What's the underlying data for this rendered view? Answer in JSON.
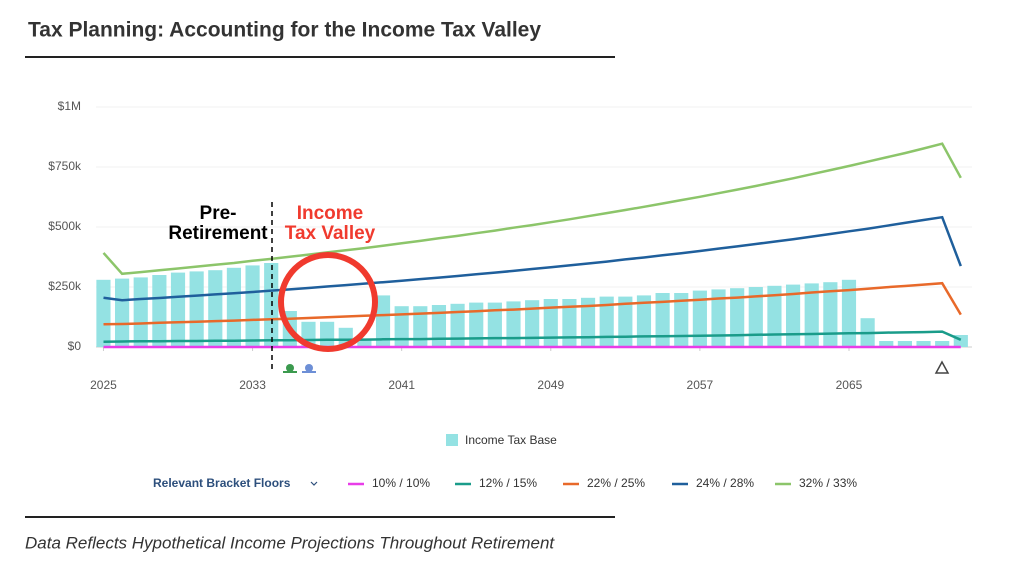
{
  "header": {
    "title": "Tax Planning: Accounting for the Income Tax Valley"
  },
  "chart_data": {
    "type": "bar",
    "x": [
      2025,
      2026,
      2027,
      2028,
      2029,
      2030,
      2031,
      2032,
      2033,
      2034,
      2035,
      2036,
      2037,
      2038,
      2039,
      2040,
      2041,
      2042,
      2043,
      2044,
      2045,
      2046,
      2047,
      2048,
      2049,
      2050,
      2051,
      2052,
      2053,
      2054,
      2055,
      2056,
      2057,
      2058,
      2059,
      2060,
      2061,
      2062,
      2063,
      2064,
      2065,
      2066,
      2067,
      2068,
      2069,
      2070,
      2071
    ],
    "xlim": [
      2024.6,
      2071.6
    ],
    "xticks": [
      2025,
      2033,
      2041,
      2049,
      2057,
      2065
    ],
    "ylim": [
      0,
      1000000
    ],
    "yticks": [
      {
        "value": 0,
        "label": "$0"
      },
      {
        "value": 250000,
        "label": "$250k"
      },
      {
        "value": 500000,
        "label": "$500k"
      },
      {
        "value": 750000,
        "label": "$750k"
      },
      {
        "value": 1000000,
        "label": "$1M"
      }
    ],
    "annotations": [
      {
        "text": [
          "Pre-",
          "Retirement"
        ],
        "color": "#000000"
      },
      {
        "text": [
          "Income",
          "Tax Valley"
        ],
        "color": "#f03a2e"
      }
    ],
    "line_legend_title": "Relevant Bracket Floors",
    "series": [
      {
        "name": "Income Tax Base",
        "type": "bar",
        "color": "#94e2e3",
        "values": [
          280000,
          285000,
          290000,
          300000,
          310000,
          315000,
          320000,
          330000,
          340000,
          350000,
          150000,
          105000,
          105000,
          80000,
          30000,
          215000,
          170000,
          170000,
          175000,
          180000,
          185000,
          185000,
          190000,
          195000,
          200000,
          200000,
          205000,
          210000,
          210000,
          215000,
          225000,
          225000,
          235000,
          240000,
          245000,
          250000,
          255000,
          260000,
          265000,
          270000,
          280000,
          120000,
          25000,
          25000,
          25000,
          25000,
          50000
        ]
      },
      {
        "name": "10% / 10%",
        "type": "line",
        "color": "#e83de8",
        "values": [
          0,
          0,
          0,
          0,
          0,
          0,
          0,
          0,
          0,
          0,
          0,
          0,
          0,
          0,
          0,
          0,
          0,
          0,
          0,
          0,
          0,
          0,
          0,
          0,
          0,
          0,
          0,
          0,
          0,
          0,
          0,
          0,
          0,
          0,
          0,
          0,
          0,
          0,
          0,
          0,
          0,
          0,
          0,
          0,
          0,
          0,
          0
        ]
      },
      {
        "name": "12% / 15%",
        "type": "line",
        "color": "#1a9c8a",
        "values": [
          22000,
          23000,
          24000,
          24000,
          25000,
          25000,
          26000,
          26000,
          27000,
          28000,
          28000,
          29000,
          30000,
          30000,
          31000,
          32000,
          33000,
          33000,
          34000,
          35000,
          36000,
          37000,
          37000,
          38000,
          39000,
          40000,
          41000,
          42000,
          43000,
          44000,
          45000,
          46000,
          47000,
          48000,
          49000,
          51000,
          52000,
          53000,
          54000,
          56000,
          57000,
          58000,
          60000,
          61000,
          62000,
          64000,
          30000
        ]
      },
      {
        "name": "22% / 25%",
        "type": "line",
        "color": "#e8692a",
        "values": [
          95000,
          96000,
          98000,
          101000,
          103000,
          105000,
          108000,
          110000,
          113000,
          116000,
          118000,
          121000,
          124000,
          127000,
          130000,
          133000,
          136000,
          139000,
          142000,
          146000,
          149000,
          153000,
          156000,
          160000,
          164000,
          168000,
          171000,
          175000,
          180000,
          184000,
          188000,
          193000,
          197000,
          202000,
          206000,
          211000,
          216000,
          221000,
          227000,
          232000,
          237000,
          243000,
          249000,
          254000,
          260000,
          266000,
          135000
        ]
      },
      {
        "name": "24% / 28%",
        "type": "line",
        "color": "#1f5f9c",
        "values": [
          205000,
          195000,
          200000,
          204000,
          209000,
          214000,
          219000,
          224000,
          229000,
          235000,
          240000,
          246000,
          252000,
          258000,
          264000,
          270000,
          276000,
          283000,
          289000,
          296000,
          303000,
          310000,
          317000,
          325000,
          332000,
          340000,
          348000,
          356000,
          365000,
          373000,
          382000,
          391000,
          400000,
          410000,
          419000,
          429000,
          439000,
          449000,
          460000,
          471000,
          482000,
          493000,
          505000,
          517000,
          529000,
          541000,
          337000
        ]
      },
      {
        "name": "32% / 33%",
        "type": "line",
        "color": "#8cc56a",
        "values": [
          392000,
          305000,
          312000,
          320000,
          327000,
          335000,
          343000,
          350000,
          359000,
          367000,
          376000,
          385000,
          394000,
          403000,
          412000,
          422000,
          432000,
          442000,
          453000,
          463000,
          474000,
          485000,
          497000,
          508000,
          520000,
          532000,
          545000,
          558000,
          571000,
          584000,
          598000,
          612000,
          626000,
          641000,
          656000,
          671000,
          687000,
          703000,
          720000,
          737000,
          754000,
          772000,
          790000,
          808000,
          827000,
          847000,
          705000
        ]
      }
    ]
  },
  "footer": {
    "caption": "Data Reflects Hypothetical Income Projections Throughout Retirement"
  }
}
